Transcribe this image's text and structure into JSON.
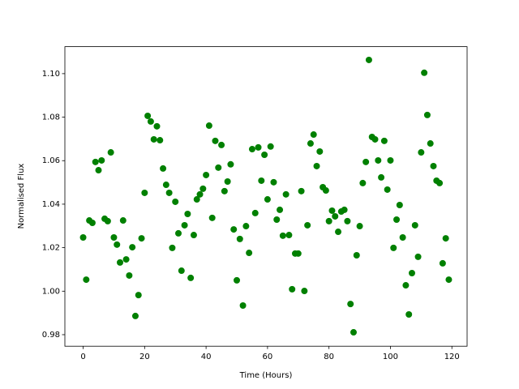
{
  "chart_data": {
    "type": "scatter",
    "x_label": "Time (Hours)",
    "y_label": "Normalised Flux",
    "color": "#008000",
    "grid": false,
    "x": [
      0,
      1,
      2,
      3,
      4,
      5,
      6,
      7,
      8,
      9,
      10,
      11,
      12,
      13,
      14,
      15,
      16,
      17,
      18,
      19,
      20,
      21,
      22,
      23,
      24,
      25,
      26,
      27,
      28,
      29,
      30,
      31,
      32,
      33,
      34,
      35,
      36,
      37,
      38,
      39,
      40,
      41,
      42,
      43,
      44,
      45,
      46,
      47,
      48,
      49,
      50,
      51,
      52,
      53,
      54,
      55,
      56,
      57,
      58,
      59,
      60,
      61,
      62,
      63,
      64,
      65,
      66,
      67,
      68,
      69,
      70,
      71,
      72,
      73,
      74,
      75,
      76,
      77,
      78,
      79,
      80,
      81,
      82,
      83,
      84,
      85,
      86,
      87,
      88,
      89,
      90,
      91,
      92,
      93,
      94,
      95,
      96,
      97,
      98,
      99,
      100,
      101,
      102,
      103,
      104,
      105,
      106,
      107,
      108,
      109,
      110,
      111,
      112,
      113,
      114,
      115,
      116,
      117,
      118,
      119
    ],
    "values": [
      1.0247,
      1.0053,
      1.0325,
      1.0314,
      1.0594,
      1.0556,
      1.0601,
      1.0333,
      1.0322,
      1.0638,
      1.0247,
      1.0214,
      1.0132,
      1.0325,
      1.0146,
      1.0072,
      1.0202,
      0.9886,
      0.9982,
      1.0243,
      1.0452,
      1.0806,
      1.078,
      1.0698,
      1.0758,
      1.0694,
      1.0564,
      1.0489,
      1.0452,
      1.0199,
      1.0411,
      1.0266,
      1.0094,
      1.0303,
      1.0355,
      1.0061,
      1.0258,
      1.0422,
      1.0445,
      1.0471,
      1.0534,
      1.0761,
      1.0337,
      1.0691,
      1.0568,
      1.0672,
      1.046,
      1.0504,
      1.0583,
      1.0284,
      1.005,
      1.024,
      0.9934,
      1.0299,
      1.0176,
      1.0653,
      1.0359,
      1.0661,
      1.0508,
      1.0627,
      1.0422,
      1.0665,
      1.0501,
      1.0329,
      1.0374,
      1.0255,
      1.0445,
      1.0258,
      1.0009,
      1.0173,
      1.0173,
      1.046,
      1.0001,
      1.0303,
      1.0679,
      1.072,
      1.0575,
      1.0642,
      1.0478,
      1.0463,
      1.0322,
      1.037,
      1.0344,
      1.0273,
      1.0366,
      1.0374,
      1.0322,
      0.9941,
      0.9811,
      1.0165,
      1.0299,
      1.0497,
      1.0594,
      1.1063,
      1.0709,
      1.0698,
      1.0601,
      1.0523,
      1.0691,
      1.0467,
      1.0601,
      1.0199,
      1.0329,
      1.0396,
      1.0247,
      1.0027,
      0.9893,
      1.0083,
      1.0303,
      1.0158,
      1.0638,
      1.1004,
      1.081,
      1.0679,
      1.0575,
      1.0508,
      1.0497,
      1.0128,
      1.0243,
      1.0053
    ],
    "xlim": [
      -5.95,
      124.95
    ],
    "xticks": [
      0,
      20,
      40,
      60,
      80,
      100,
      120
    ],
    "ylim": [
      0.9747,
      1.1124
    ],
    "yticks": [
      0.98,
      {
        "value": 1,
        "label": "1.00"
      },
      1.02,
      1.04,
      1.06,
      1.08,
      {
        "value": 1.1,
        "label": "1.10"
      }
    ]
  }
}
